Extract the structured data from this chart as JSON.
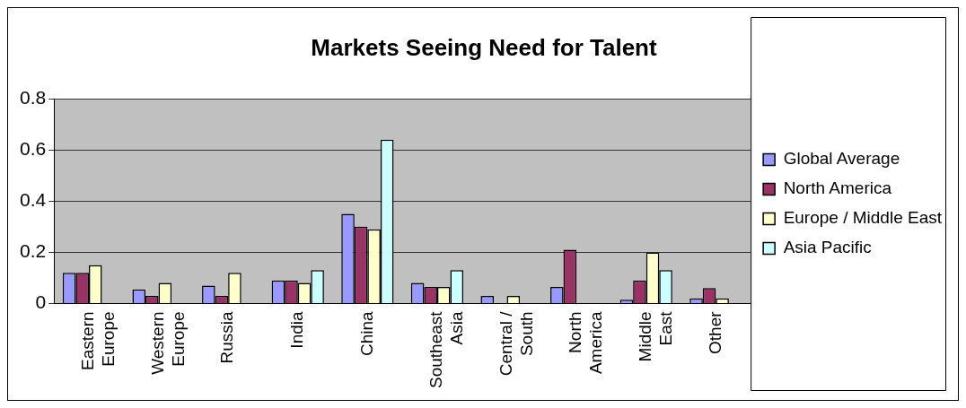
{
  "chart_data": {
    "type": "bar",
    "title": "Markets Seeing Need for Talent",
    "categories": [
      "Eastern Europe",
      "Western Europe",
      "Russia",
      "India",
      "China",
      "Southeast Asia",
      "Central / South",
      "North America",
      "Middle East",
      "Other"
    ],
    "series": [
      {
        "name": "Global Average",
        "color": "#9999ff",
        "values": [
          0.12,
          0.055,
          0.07,
          0.09,
          0.35,
          0.08,
          0.03,
          0.065,
          0.015,
          0.02
        ]
      },
      {
        "name": "North America",
        "color": "#993366",
        "values": [
          0.12,
          0.03,
          0.03,
          0.09,
          0.3,
          0.065,
          null,
          0.21,
          0.09,
          0.06
        ]
      },
      {
        "name": "Europe / Middle East",
        "color": "#ffffcc",
        "values": [
          0.15,
          0.08,
          0.12,
          0.08,
          0.29,
          0.065,
          0.03,
          null,
          0.2,
          0.02
        ]
      },
      {
        "name": "Asia Pacific",
        "color": "#ccffff",
        "values": [
          null,
          null,
          null,
          0.13,
          0.64,
          0.13,
          null,
          null,
          0.13,
          null
        ]
      }
    ],
    "ylim": [
      0,
      0.8
    ],
    "yticks": [
      0,
      0.2,
      0.4,
      0.6,
      0.8
    ],
    "grid": "y",
    "legend": "right"
  }
}
